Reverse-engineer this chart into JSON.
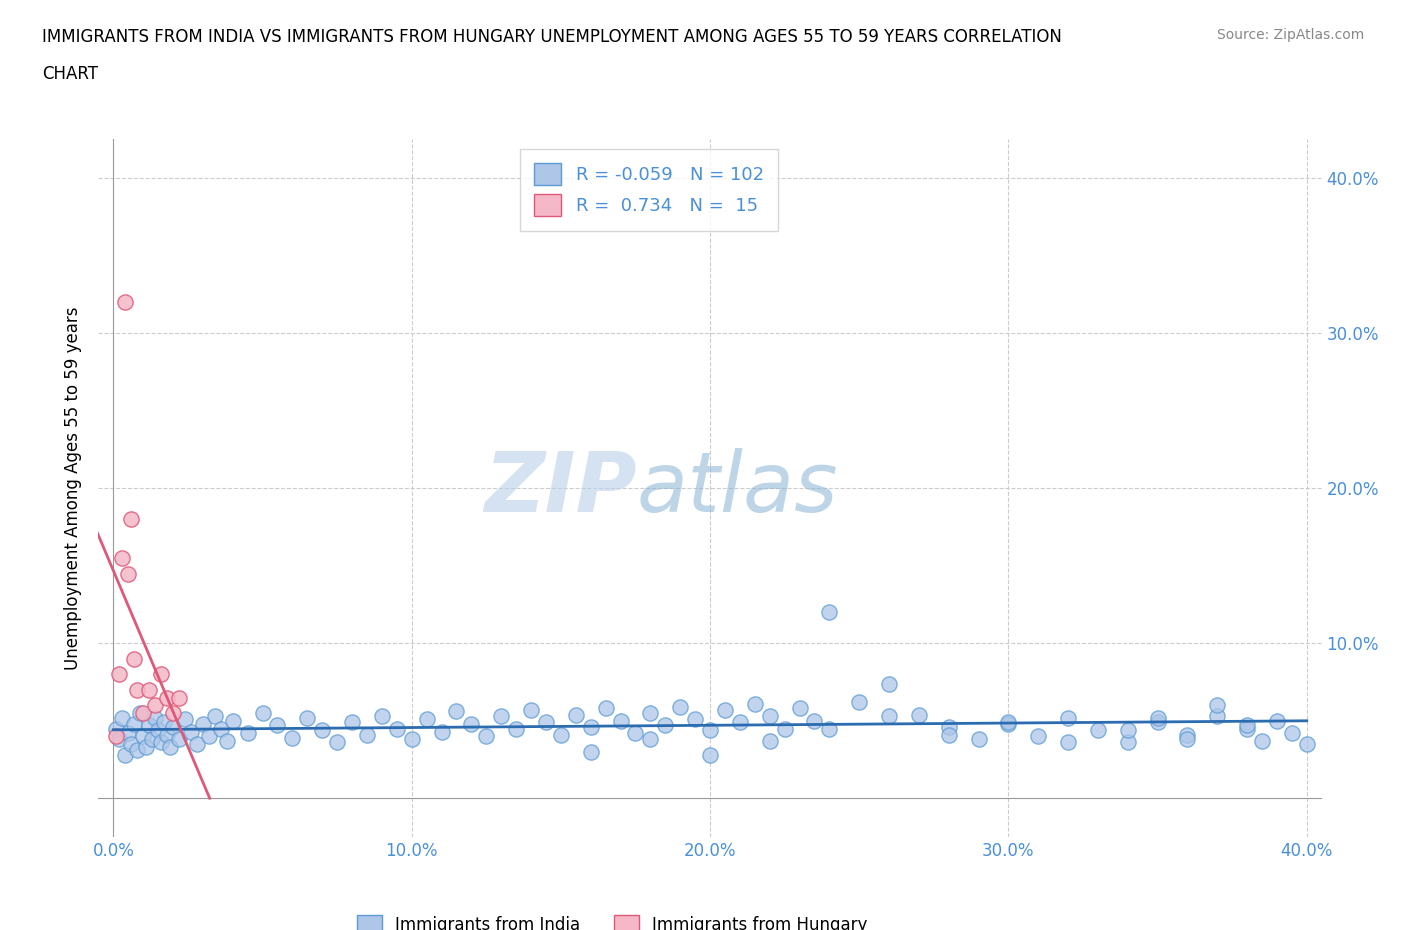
{
  "title_line1": "IMMIGRANTS FROM INDIA VS IMMIGRANTS FROM HUNGARY UNEMPLOYMENT AMONG AGES 55 TO 59 YEARS CORRELATION",
  "title_line2": "CHART",
  "source": "Source: ZipAtlas.com",
  "xlabel_india": "Immigrants from India",
  "xlabel_hungary": "Immigrants from Hungary",
  "ylabel": "Unemployment Among Ages 55 to 59 years",
  "xlim": [
    -0.005,
    0.405
  ],
  "ylim": [
    -0.025,
    0.425
  ],
  "xticks": [
    0.0,
    0.1,
    0.2,
    0.3,
    0.4
  ],
  "yticks": [
    0.0,
    0.1,
    0.2,
    0.3,
    0.4
  ],
  "xticklabels": [
    "0.0%",
    "10.0%",
    "20.0%",
    "30.0%",
    "40.0%"
  ],
  "yticklabels_right": [
    "",
    "10.0%",
    "20.0%",
    "30.0%",
    "40.0%"
  ],
  "india_R": -0.059,
  "india_N": 102,
  "hungary_R": 0.734,
  "hungary_N": 15,
  "india_face_color": "#aec6e8",
  "india_edge_color": "#5b9bd5",
  "hungary_face_color": "#f4b8c8",
  "hungary_edge_color": "#e05878",
  "india_line_color": "#2b6cb0",
  "hungary_line_color": "#e05878",
  "hungary_dash_color": "#f0a0b8",
  "watermark_zip": "ZIP",
  "watermark_atlas": "atlas",
  "india_x": [
    0.001,
    0.002,
    0.003,
    0.004,
    0.005,
    0.006,
    0.007,
    0.008,
    0.009,
    0.01,
    0.011,
    0.012,
    0.013,
    0.014,
    0.015,
    0.016,
    0.017,
    0.018,
    0.019,
    0.02,
    0.022,
    0.024,
    0.026,
    0.028,
    0.03,
    0.032,
    0.034,
    0.036,
    0.038,
    0.04,
    0.045,
    0.05,
    0.055,
    0.06,
    0.065,
    0.07,
    0.075,
    0.08,
    0.085,
    0.09,
    0.095,
    0.1,
    0.105,
    0.11,
    0.115,
    0.12,
    0.125,
    0.13,
    0.135,
    0.14,
    0.145,
    0.15,
    0.155,
    0.16,
    0.165,
    0.17,
    0.175,
    0.18,
    0.185,
    0.19,
    0.195,
    0.2,
    0.205,
    0.21,
    0.215,
    0.22,
    0.225,
    0.23,
    0.235,
    0.24,
    0.25,
    0.26,
    0.27,
    0.28,
    0.29,
    0.3,
    0.31,
    0.32,
    0.33,
    0.34,
    0.35,
    0.36,
    0.37,
    0.38,
    0.385,
    0.39,
    0.395,
    0.4,
    0.38,
    0.37,
    0.36,
    0.35,
    0.34,
    0.32,
    0.3,
    0.28,
    0.26,
    0.24,
    0.22,
    0.2,
    0.18,
    0.16
  ],
  "india_y": [
    0.045,
    0.038,
    0.052,
    0.028,
    0.042,
    0.035,
    0.048,
    0.031,
    0.055,
    0.04,
    0.033,
    0.047,
    0.038,
    0.052,
    0.044,
    0.036,
    0.049,
    0.041,
    0.033,
    0.046,
    0.038,
    0.051,
    0.043,
    0.035,
    0.048,
    0.04,
    0.053,
    0.045,
    0.037,
    0.05,
    0.042,
    0.055,
    0.047,
    0.039,
    0.052,
    0.044,
    0.036,
    0.049,
    0.041,
    0.053,
    0.045,
    0.038,
    0.051,
    0.043,
    0.056,
    0.048,
    0.04,
    0.053,
    0.045,
    0.057,
    0.049,
    0.041,
    0.054,
    0.046,
    0.058,
    0.05,
    0.042,
    0.055,
    0.047,
    0.059,
    0.051,
    0.044,
    0.057,
    0.049,
    0.061,
    0.053,
    0.045,
    0.058,
    0.05,
    0.12,
    0.062,
    0.074,
    0.054,
    0.046,
    0.038,
    0.048,
    0.04,
    0.052,
    0.044,
    0.036,
    0.049,
    0.041,
    0.053,
    0.045,
    0.037,
    0.05,
    0.042,
    0.035,
    0.047,
    0.06,
    0.038,
    0.052,
    0.044,
    0.036,
    0.049,
    0.041,
    0.053,
    0.045,
    0.037,
    0.028,
    0.038,
    0.03
  ],
  "hungary_x": [
    0.001,
    0.002,
    0.003,
    0.004,
    0.005,
    0.006,
    0.007,
    0.008,
    0.01,
    0.012,
    0.014,
    0.016,
    0.018,
    0.02,
    0.022
  ],
  "hungary_y": [
    0.04,
    0.08,
    0.155,
    0.32,
    0.145,
    0.18,
    0.09,
    0.07,
    0.055,
    0.07,
    0.06,
    0.08,
    0.065,
    0.055,
    0.065
  ]
}
